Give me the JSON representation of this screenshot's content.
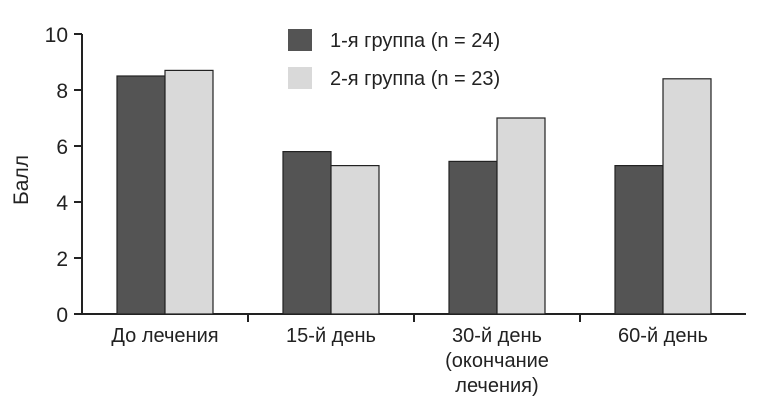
{
  "chart_data": {
    "type": "bar",
    "ylabel": "Балл",
    "ylim": [
      0,
      10
    ],
    "yticks": [
      "0",
      "2",
      "4",
      "6",
      "8",
      "10"
    ],
    "categories": [
      [
        "До лечения"
      ],
      [
        "15-й день"
      ],
      [
        "30-й день",
        "(окончание",
        "лечения)"
      ],
      [
        "60-й день"
      ]
    ],
    "series": [
      {
        "name": "1-я группа (n = 24)",
        "color": "#545454",
        "values": [
          8.5,
          5.8,
          5.45,
          5.3
        ]
      },
      {
        "name": "2-я группа (n = 23)",
        "color": "#d9d9d9",
        "values": [
          8.7,
          5.3,
          7.0,
          8.4
        ]
      }
    ],
    "legend_position": "top-center",
    "grid": false
  }
}
